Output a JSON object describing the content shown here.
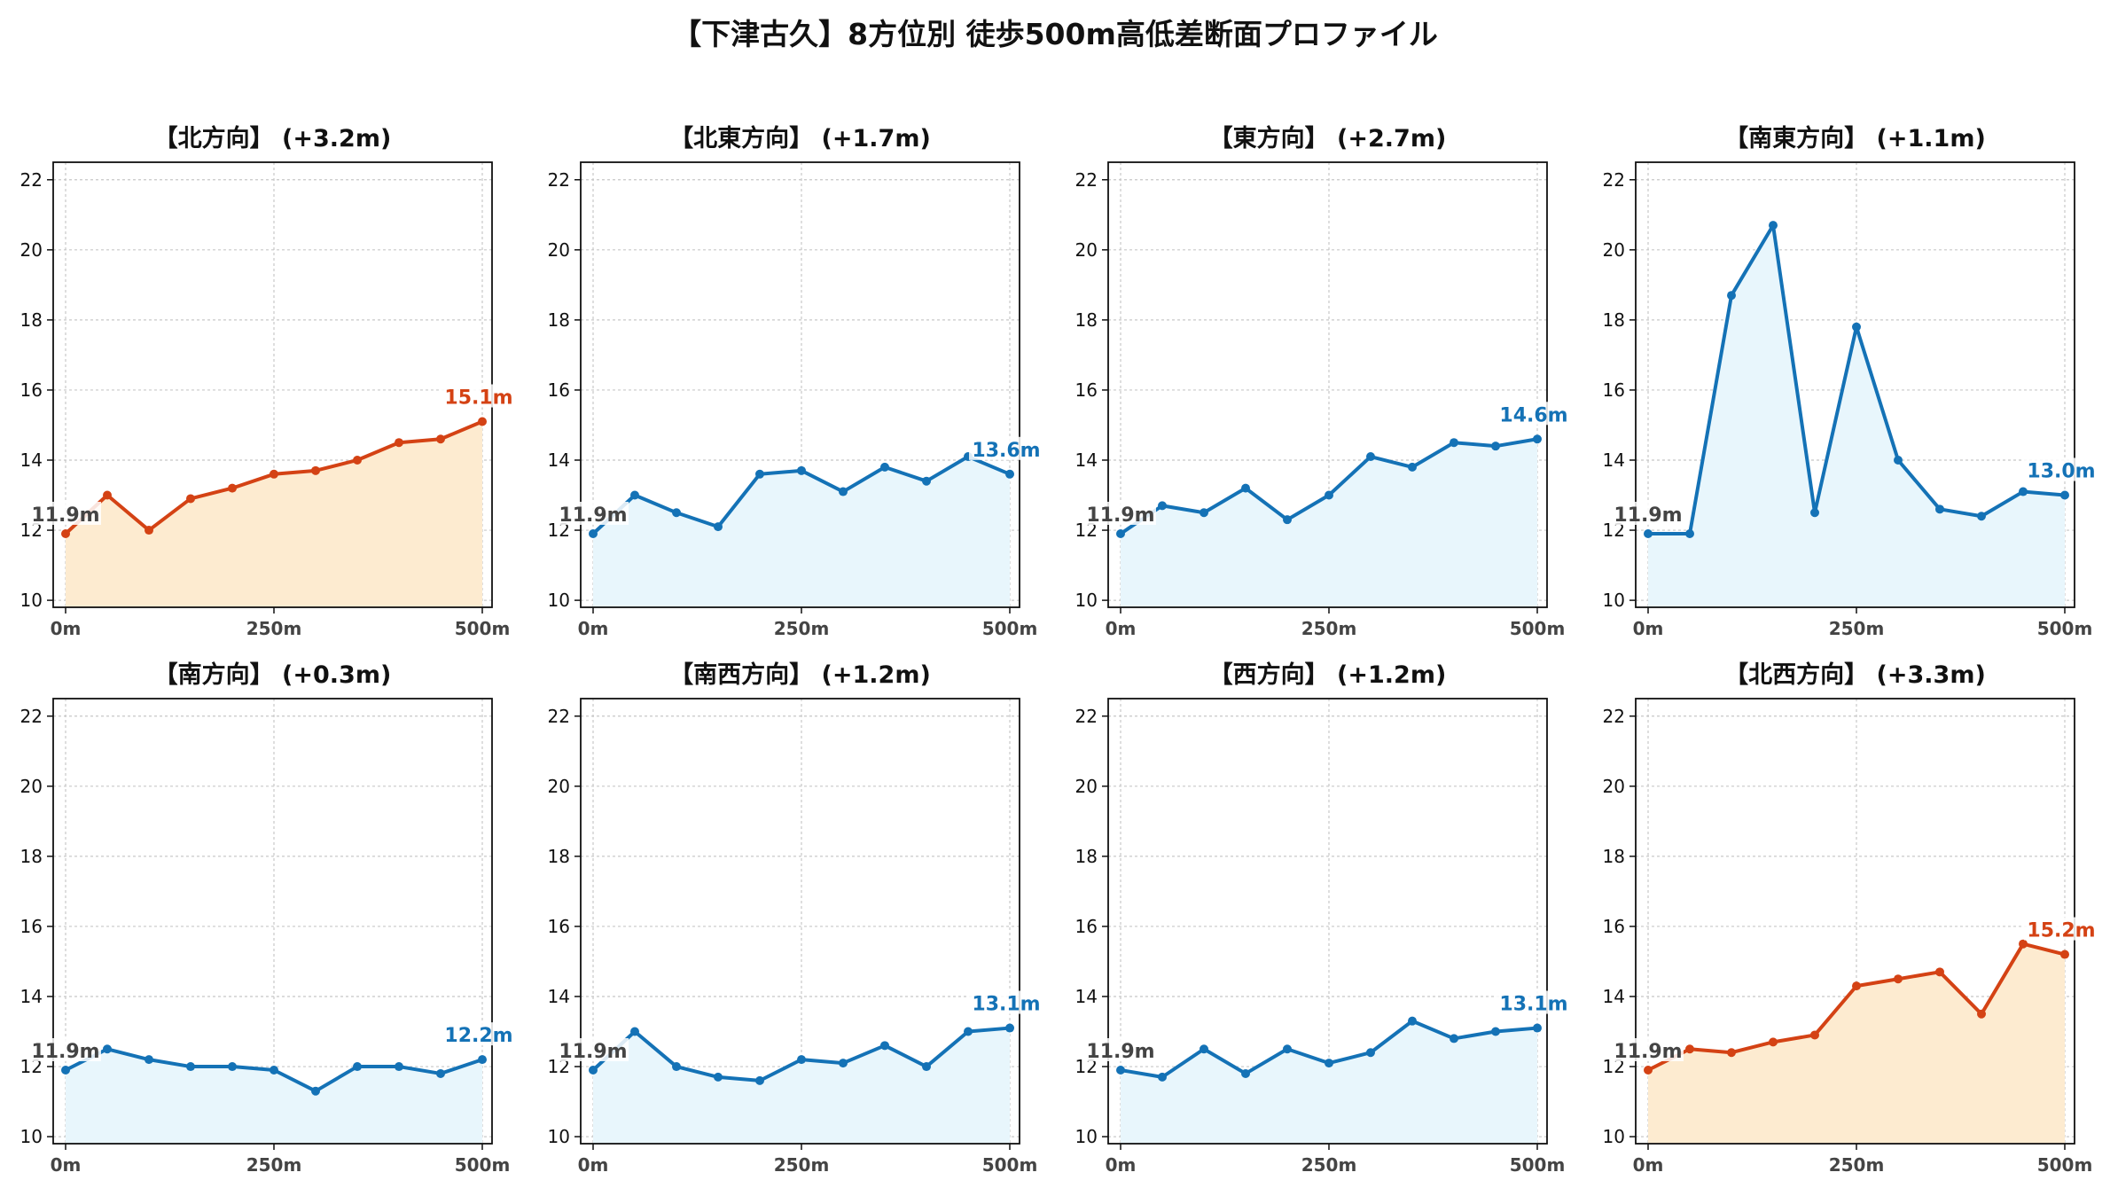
{
  "page_title": "【下津古久】8方位別 徒歩500m高低差断面プロファイル",
  "colors": {
    "up_line": "#d44214",
    "up_fill": "#fdebd0",
    "flat_line": "#1472b6",
    "flat_fill": "#e8f6fc",
    "start_label": "#444444",
    "grid": "#c8c8c8"
  },
  "chart_data": [
    {
      "type": "area",
      "title": "【北方向】 (+3.2m)",
      "x": [
        0,
        50,
        100,
        150,
        200,
        250,
        300,
        350,
        400,
        450,
        500
      ],
      "xticks": [
        "0m",
        "250m",
        "500m"
      ],
      "xtick_values": [
        0,
        250,
        500
      ],
      "y": [
        11.9,
        13.0,
        12.0,
        12.9,
        13.2,
        13.6,
        13.7,
        14.0,
        14.5,
        14.6,
        15.1
      ],
      "ylim": [
        9.8,
        22.5
      ],
      "yticks": [
        10,
        12,
        14,
        16,
        18,
        20,
        22
      ],
      "start_label": "11.9m",
      "end_label": "15.1m",
      "color": "up",
      "grid": true
    },
    {
      "type": "area",
      "title": "【北東方向】 (+1.7m)",
      "x": [
        0,
        50,
        100,
        150,
        200,
        250,
        300,
        350,
        400,
        450,
        500
      ],
      "xticks": [
        "0m",
        "250m",
        "500m"
      ],
      "xtick_values": [
        0,
        250,
        500
      ],
      "y": [
        11.9,
        13.0,
        12.5,
        12.1,
        13.6,
        13.7,
        13.1,
        13.8,
        13.4,
        14.1,
        13.6
      ],
      "ylim": [
        9.8,
        22.5
      ],
      "yticks": [
        10,
        12,
        14,
        16,
        18,
        20,
        22
      ],
      "start_label": "11.9m",
      "end_label": "13.6m",
      "color": "flat",
      "grid": true
    },
    {
      "type": "area",
      "title": "【東方向】 (+2.7m)",
      "x": [
        0,
        50,
        100,
        150,
        200,
        250,
        300,
        350,
        400,
        450,
        500
      ],
      "xticks": [
        "0m",
        "250m",
        "500m"
      ],
      "xtick_values": [
        0,
        250,
        500
      ],
      "y": [
        11.9,
        12.7,
        12.5,
        13.2,
        12.3,
        13.0,
        14.1,
        13.8,
        14.5,
        14.4,
        14.6
      ],
      "ylim": [
        9.8,
        22.5
      ],
      "yticks": [
        10,
        12,
        14,
        16,
        18,
        20,
        22
      ],
      "start_label": "11.9m",
      "end_label": "14.6m",
      "color": "flat",
      "grid": true
    },
    {
      "type": "area",
      "title": "【南東方向】 (+1.1m)",
      "x": [
        0,
        50,
        100,
        150,
        200,
        250,
        300,
        350,
        400,
        450,
        500
      ],
      "xticks": [
        "0m",
        "250m",
        "500m"
      ],
      "xtick_values": [
        0,
        250,
        500
      ],
      "y": [
        11.9,
        11.9,
        18.7,
        20.7,
        12.5,
        17.8,
        14.0,
        12.6,
        12.4,
        13.1,
        13.0
      ],
      "ylim": [
        9.8,
        22.5
      ],
      "yticks": [
        10,
        12,
        14,
        16,
        18,
        20,
        22
      ],
      "start_label": "11.9m",
      "end_label": "13.0m",
      "color": "flat",
      "grid": true
    },
    {
      "type": "area",
      "title": "【南方向】 (+0.3m)",
      "x": [
        0,
        50,
        100,
        150,
        200,
        250,
        300,
        350,
        400,
        450,
        500
      ],
      "xticks": [
        "0m",
        "250m",
        "500m"
      ],
      "xtick_values": [
        0,
        250,
        500
      ],
      "y": [
        11.9,
        12.5,
        12.2,
        12.0,
        12.0,
        11.9,
        11.3,
        12.0,
        12.0,
        11.8,
        12.2
      ],
      "ylim": [
        9.8,
        22.5
      ],
      "yticks": [
        10,
        12,
        14,
        16,
        18,
        20,
        22
      ],
      "start_label": "11.9m",
      "end_label": "12.2m",
      "color": "flat",
      "grid": true
    },
    {
      "type": "area",
      "title": "【南西方向】 (+1.2m)",
      "x": [
        0,
        50,
        100,
        150,
        200,
        250,
        300,
        350,
        400,
        450,
        500
      ],
      "xticks": [
        "0m",
        "250m",
        "500m"
      ],
      "xtick_values": [
        0,
        250,
        500
      ],
      "y": [
        11.9,
        13.0,
        12.0,
        11.7,
        11.6,
        12.2,
        12.1,
        12.6,
        12.0,
        13.0,
        13.1
      ],
      "ylim": [
        9.8,
        22.5
      ],
      "yticks": [
        10,
        12,
        14,
        16,
        18,
        20,
        22
      ],
      "start_label": "11.9m",
      "end_label": "13.1m",
      "color": "flat",
      "grid": true
    },
    {
      "type": "area",
      "title": "【西方向】 (+1.2m)",
      "x": [
        0,
        50,
        100,
        150,
        200,
        250,
        300,
        350,
        400,
        450,
        500
      ],
      "xticks": [
        "0m",
        "250m",
        "500m"
      ],
      "xtick_values": [
        0,
        250,
        500
      ],
      "y": [
        11.9,
        11.7,
        12.5,
        11.8,
        12.5,
        12.1,
        12.4,
        13.3,
        12.8,
        13.0,
        13.1
      ],
      "ylim": [
        9.8,
        22.5
      ],
      "yticks": [
        10,
        12,
        14,
        16,
        18,
        20,
        22
      ],
      "start_label": "11.9m",
      "end_label": "13.1m",
      "color": "flat",
      "grid": true
    },
    {
      "type": "area",
      "title": "【北西方向】 (+3.3m)",
      "x": [
        0,
        50,
        100,
        150,
        200,
        250,
        300,
        350,
        400,
        450,
        500
      ],
      "xticks": [
        "0m",
        "250m",
        "500m"
      ],
      "xtick_values": [
        0,
        250,
        500
      ],
      "y": [
        11.9,
        12.5,
        12.4,
        12.7,
        12.9,
        14.3,
        14.5,
        14.7,
        13.5,
        15.5,
        15.2
      ],
      "ylim": [
        9.8,
        22.5
      ],
      "yticks": [
        10,
        12,
        14,
        16,
        18,
        20,
        22
      ],
      "start_label": "11.9m",
      "end_label": "15.2m",
      "color": "up",
      "grid": true
    }
  ]
}
